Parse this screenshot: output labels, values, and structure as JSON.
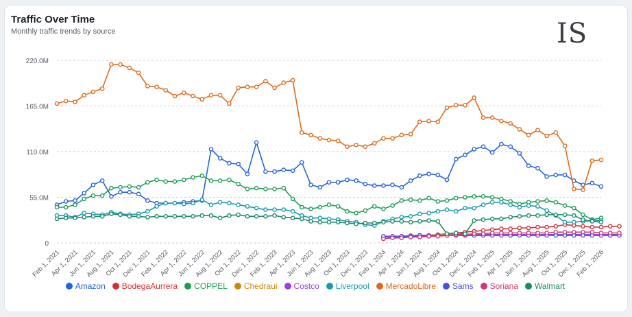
{
  "header": {
    "title": "Traffic Over Time",
    "subtitle": "Monthly traffic trends by source",
    "logo_text": "IS"
  },
  "chart_data": {
    "type": "line",
    "title": "Traffic Over Time",
    "subtitle": "Monthly traffic trends by source",
    "xlabel": "",
    "ylabel": "",
    "ylim": [
      0,
      220000000
    ],
    "y_ticks": [
      0,
      55000000,
      110000000,
      165000000,
      220000000
    ],
    "y_tick_labels": [
      "0",
      "55.0M",
      "110.0M",
      "165.0M",
      "220.0M"
    ],
    "x_tick_labels": [
      "Feb 1, 2021",
      "Apr 1, 2021",
      "Jun 1, 2021",
      "Aug 1, 2021",
      "Oct 1, 2021",
      "Dec 1, 2021",
      "Feb 1, 2022",
      "Apr 1, 2022",
      "Jun 1, 2022",
      "Aug 1, 2022",
      "Oct 1, 2022",
      "Dec 1, 2022",
      "Feb 1, 2023",
      "Apr 1, 2023",
      "Jun 1, 2023",
      "Aug 1, 2023",
      "Oct 1, 2023",
      "Dec 1, 2023",
      "Feb 1, 2024",
      "Apr 1, 2024",
      "Jun 1, 2024",
      "Aug 1, 2024",
      "Oct 1, 2024",
      "Dec 1, 2024",
      "Feb 1, 2025",
      "Apr 1, 2025",
      "Jun 1, 2025",
      "Aug 1, 2025",
      "Oct 1, 2025",
      "Dec 1, 2025",
      "Feb 1, 2026"
    ],
    "x_start": "Feb 2021",
    "months": 61,
    "grid": true,
    "legend_position": "bottom",
    "series": [
      {
        "name": "Amazon",
        "color": "#2563d9",
        "start": 0,
        "values": [
          46,
          50,
          51,
          60,
          70,
          75,
          56,
          61,
          61,
          59,
          51,
          48,
          48,
          48,
          49,
          50,
          51,
          113,
          102,
          96,
          95,
          83,
          121,
          86,
          86,
          88,
          87,
          97,
          70,
          67,
          73,
          73,
          76,
          75,
          71,
          69,
          69,
          70,
          67,
          75,
          81,
          83,
          82,
          76,
          101,
          106,
          113,
          116,
          109,
          119,
          116,
          108,
          93,
          90,
          80,
          82,
          82,
          75,
          70,
          72,
          68
        ]
      },
      {
        "name": "BodegaAurrera",
        "color": "#d62f2f",
        "start": 36,
        "values": [
          7,
          7,
          8,
          8,
          9,
          9,
          10,
          11,
          12,
          13,
          14,
          15,
          16,
          17,
          17,
          18,
          18,
          19,
          19,
          20,
          22,
          21,
          20,
          19,
          19,
          20,
          20
        ]
      },
      {
        "name": "COPPEL",
        "color": "#1f9d55",
        "start": 0,
        "values": [
          43,
          43,
          46,
          53,
          57,
          57,
          66,
          67,
          68,
          67,
          73,
          76,
          74,
          74,
          76,
          79,
          81,
          75,
          75,
          76,
          71,
          65,
          66,
          65,
          65,
          66,
          53,
          43,
          41,
          43,
          46,
          44,
          38,
          36,
          39,
          44,
          41,
          45,
          51,
          52,
          51,
          54,
          50,
          51,
          54,
          55,
          56,
          56,
          55,
          53,
          50,
          47,
          49,
          50,
          51,
          49,
          45,
          42,
          34,
          28,
          30
        ]
      },
      {
        "name": "Chedraui",
        "color": "#c98a0c",
        "start": 36,
        "values": [
          8,
          8,
          8,
          9,
          9,
          9,
          10,
          10,
          10,
          10,
          10,
          10,
          10,
          10,
          10,
          10,
          10,
          10,
          10,
          10,
          10,
          10,
          10,
          10,
          10,
          10,
          10
        ]
      },
      {
        "name": "Costco",
        "color": "#9b3fe0",
        "start": 36,
        "values": [
          7,
          7,
          7,
          8,
          8,
          8,
          9,
          9,
          10,
          10,
          10,
          10,
          10,
          10,
          10,
          10,
          10,
          10,
          10,
          10,
          10,
          10,
          10,
          10,
          10,
          10,
          10
        ]
      },
      {
        "name": "Liverpool",
        "color": "#1a9bab",
        "start": 0,
        "values": [
          33,
          33,
          31,
          36,
          35,
          34,
          37,
          35,
          34,
          35,
          38,
          44,
          48,
          48,
          47,
          48,
          52,
          46,
          49,
          48,
          46,
          44,
          42,
          40,
          40,
          40,
          38,
          33,
          30,
          30,
          29,
          28,
          26,
          25,
          22,
          21,
          26,
          29,
          31,
          32,
          35,
          36,
          38,
          40,
          38,
          42,
          42,
          46,
          49,
          49,
          46,
          43,
          45,
          44,
          39,
          33,
          25,
          25,
          26,
          27,
          27
        ]
      },
      {
        "name": "MercadoLibre",
        "color": "#e06a1c",
        "start": 0,
        "values": [
          168,
          171,
          170,
          178,
          182,
          186,
          215,
          215,
          211,
          205,
          189,
          188,
          184,
          177,
          181,
          177,
          173,
          178,
          178,
          168,
          187,
          188,
          188,
          195,
          187,
          193,
          196,
          133,
          130,
          126,
          124,
          123,
          116,
          118,
          116,
          120,
          126,
          126,
          130,
          131,
          146,
          147,
          146,
          163,
          166,
          166,
          175,
          151,
          151,
          147,
          144,
          137,
          130,
          136,
          129,
          133,
          117,
          65,
          64,
          99,
          100
        ]
      },
      {
        "name": "Sams",
        "color": "#4b4fe0",
        "start": 36,
        "values": [
          8,
          8,
          8,
          8,
          9,
          9,
          9,
          9,
          9,
          9,
          9,
          9,
          9,
          9,
          9,
          9,
          9,
          9,
          9,
          9,
          9,
          9,
          9,
          9,
          9,
          9,
          9
        ]
      },
      {
        "name": "Soriana",
        "color": "#d6337a",
        "start": 36,
        "values": [
          5,
          6,
          6,
          7,
          7,
          8,
          8,
          9,
          10,
          10,
          11,
          11,
          12,
          12,
          12,
          12,
          12,
          12,
          12,
          13,
          13,
          13,
          13,
          13,
          12,
          12,
          12
        ]
      },
      {
        "name": "Walmart",
        "color": "#1a8a68",
        "start": 0,
        "values": [
          29,
          30,
          30,
          31,
          32,
          32,
          35,
          34,
          32,
          32,
          31,
          32,
          32,
          32,
          32,
          32,
          33,
          33,
          30,
          33,
          34,
          32,
          32,
          32,
          33,
          31,
          30,
          29,
          26,
          25,
          25,
          25,
          24,
          23,
          24,
          24,
          25,
          26,
          26,
          25,
          26,
          27,
          26,
          11,
          12,
          11,
          27,
          28,
          29,
          29,
          31,
          32,
          33,
          33,
          34,
          34,
          34,
          33,
          28,
          26,
          25
        ]
      }
    ]
  }
}
